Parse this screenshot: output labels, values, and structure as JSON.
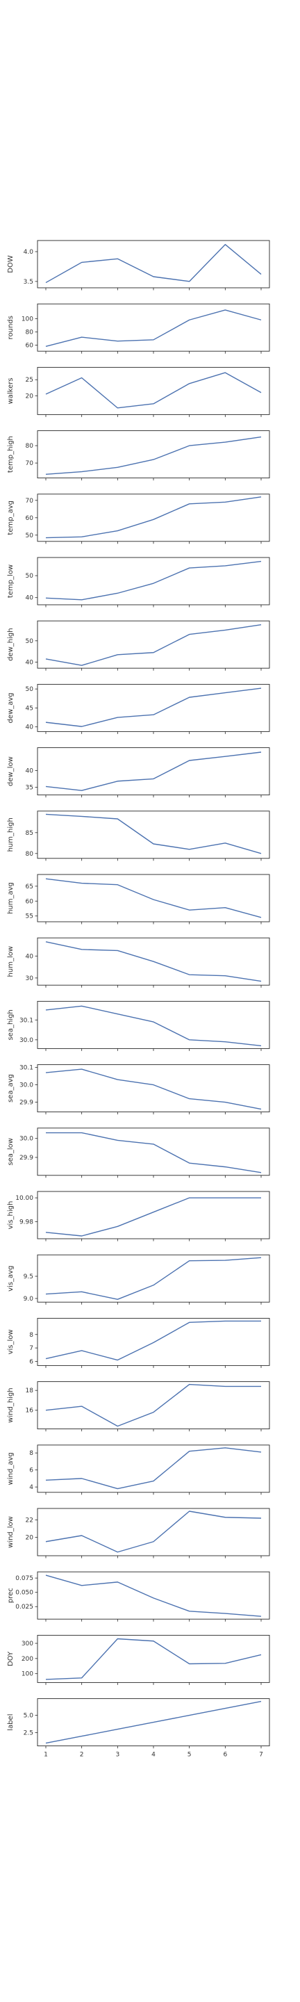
{
  "figure": {
    "background": "#ffffff",
    "line_color": "#4c72b0",
    "axis_color": "#262626"
  },
  "chart_data": {
    "type": "line",
    "layout": "vertically stacked subplots, shared x axis",
    "grid": false,
    "x": [
      1,
      2,
      3,
      4,
      5,
      6,
      7
    ],
    "xticks": [
      "1",
      "2",
      "3",
      "4",
      "5",
      "6",
      "7"
    ],
    "subplots": [
      {
        "ylabel": "DOW",
        "yticks": [
          "3.5",
          "4.0"
        ],
        "ytick_values": [
          3.5,
          4.0
        ],
        "ylim": [
          3.44,
          4.14
        ],
        "values": [
          3.48,
          3.82,
          3.88,
          3.58,
          3.5,
          4.12,
          3.62
        ]
      },
      {
        "ylabel": "rounds",
        "yticks": [
          "60",
          "80",
          "100"
        ],
        "ytick_values": [
          60,
          80,
          100
        ],
        "ylim": [
          55,
          118
        ],
        "values": [
          58,
          72,
          66,
          68,
          98,
          113,
          98
        ]
      },
      {
        "ylabel": "walkers",
        "yticks": [
          "20",
          "25"
        ],
        "ytick_values": [
          20,
          25
        ],
        "ylim": [
          15,
          28
        ],
        "values": [
          20.5,
          25.6,
          16.2,
          17.5,
          23.8,
          27.2,
          21.0
        ]
      },
      {
        "ylabel": "temp_high",
        "yticks": [
          "70",
          "80"
        ],
        "ytick_values": [
          70,
          80
        ],
        "ylim": [
          63,
          87
        ],
        "values": [
          63.5,
          65,
          67.5,
          72,
          80,
          82,
          85
        ]
      },
      {
        "ylabel": "temp_avg",
        "yticks": [
          "50",
          "60",
          "70"
        ],
        "ytick_values": [
          50,
          60,
          70
        ],
        "ylim": [
          48,
          72
        ],
        "values": [
          48.5,
          49,
          52.5,
          59,
          68,
          69,
          72
        ]
      },
      {
        "ylabel": "temp_low",
        "yticks": [
          "40",
          "50"
        ],
        "ytick_values": [
          40,
          50
        ],
        "ylim": [
          38,
          57
        ],
        "values": [
          39.8,
          39,
          42,
          46.5,
          53.5,
          54.5,
          56.5
        ]
      },
      {
        "ylabel": "dew_high",
        "yticks": [
          "40",
          "50"
        ],
        "ytick_values": [
          40,
          50
        ],
        "ylim": [
          38.5,
          58
        ],
        "values": [
          41.5,
          38.5,
          43.5,
          44.5,
          53,
          55,
          57.5
        ]
      },
      {
        "ylabel": "dew_avg",
        "yticks": [
          "40",
          "45",
          "50"
        ],
        "ytick_values": [
          40,
          45,
          50
        ],
        "ylim": [
          39.5,
          50.5
        ],
        "values": [
          41.2,
          40.1,
          42.5,
          43.2,
          47.8,
          49.0,
          50.2
        ]
      },
      {
        "ylabel": "dew_low",
        "yticks": [
          "35",
          "40"
        ],
        "ytick_values": [
          35,
          40
        ],
        "ylim": [
          33.5,
          46
        ],
        "values": [
          35.2,
          34,
          36.8,
          37.5,
          43,
          44.2,
          45.5
        ]
      },
      {
        "ylabel": "hum_high",
        "yticks": [
          "80",
          "85"
        ],
        "ytick_values": [
          80,
          85
        ],
        "ylim": [
          79.5,
          89.5
        ],
        "values": [
          89.4,
          88.9,
          88.3,
          82.3,
          81,
          82.5,
          80
        ]
      },
      {
        "ylabel": "hum_avg",
        "yticks": [
          "55",
          "60",
          "65"
        ],
        "ytick_values": [
          55,
          60,
          65
        ],
        "ylim": [
          54,
          68
        ],
        "values": [
          67.5,
          66,
          65.5,
          60.5,
          57,
          57.8,
          54.5
        ]
      },
      {
        "ylabel": "hum_low",
        "yticks": [
          "30",
          "40"
        ],
        "ytick_values": [
          30,
          40
        ],
        "ylim": [
          28,
          47
        ],
        "values": [
          46.5,
          43,
          42.5,
          37.5,
          31.5,
          31,
          28.5
        ]
      },
      {
        "ylabel": "sea_high",
        "yticks": [
          "30.0",
          "30.1"
        ],
        "ytick_values": [
          30.0,
          30.1
        ],
        "ylim": [
          29.97,
          30.18
        ],
        "values": [
          30.15,
          30.17,
          30.13,
          30.09,
          30.0,
          29.99,
          29.97
        ]
      },
      {
        "ylabel": "sea_avg",
        "yticks": [
          "29.9",
          "30.0",
          "30.1"
        ],
        "ytick_values": [
          29.9,
          30.0,
          30.1
        ],
        "ylim": [
          29.86,
          30.1
        ],
        "values": [
          30.07,
          30.09,
          30.03,
          30.0,
          29.92,
          29.9,
          29.86
        ]
      },
      {
        "ylabel": "sea_low",
        "yticks": [
          "29.9",
          "30.0"
        ],
        "ytick_values": [
          29.9,
          30.0
        ],
        "ylim": [
          29.82,
          30.04
        ],
        "values": [
          30.03,
          30.03,
          29.99,
          29.97,
          29.87,
          29.85,
          29.82
        ]
      },
      {
        "ylabel": "vis_high",
        "yticks": [
          "9.98",
          "10.00"
        ],
        "ytick_values": [
          9.98,
          10.0
        ],
        "ylim": [
          9.968,
          10.003
        ],
        "values": [
          9.971,
          9.968,
          9.976,
          9.988,
          10.0,
          10.0,
          10.0
        ]
      },
      {
        "ylabel": "vis_avg",
        "yticks": [
          "9.0",
          "9.5"
        ],
        "ytick_values": [
          9.0,
          9.5
        ],
        "ylim": [
          8.98,
          9.92
        ],
        "values": [
          9.1,
          9.15,
          8.98,
          9.3,
          9.85,
          9.86,
          9.92
        ]
      },
      {
        "ylabel": "vis_low",
        "yticks": [
          "6",
          "7",
          "8"
        ],
        "ytick_values": [
          6,
          7,
          8
        ],
        "ylim": [
          5.9,
          9.0
        ],
        "values": [
          6.2,
          6.8,
          6.1,
          7.4,
          8.9,
          9.0,
          9.0
        ]
      },
      {
        "ylabel": "wind_high",
        "yticks": [
          "16",
          "18"
        ],
        "ytick_values": [
          16,
          18
        ],
        "ylim": [
          14.4,
          18.6
        ],
        "values": [
          16.0,
          16.4,
          14.4,
          15.8,
          18.6,
          18.4,
          18.4
        ]
      },
      {
        "ylabel": "wind_avg",
        "yticks": [
          "4",
          "6",
          "8"
        ],
        "ytick_values": [
          4,
          6,
          8
        ],
        "ylim": [
          3.7,
          8.6
        ],
        "values": [
          4.8,
          5.0,
          3.8,
          4.7,
          8.2,
          8.6,
          8.1
        ]
      },
      {
        "ylabel": "wind_low",
        "yticks": [
          "20",
          "22"
        ],
        "ytick_values": [
          20,
          22
        ],
        "ylim": [
          18.2,
          23.0
        ],
        "values": [
          19.5,
          20.2,
          18.3,
          19.5,
          23.0,
          22.3,
          22.2
        ]
      },
      {
        "ylabel": "prec",
        "yticks": [
          "0.025",
          "0.050",
          "0.075"
        ],
        "ytick_values": [
          0.025,
          0.05,
          0.075
        ],
        "ylim": [
          0.008,
          0.081
        ],
        "values": [
          0.08,
          0.062,
          0.068,
          0.04,
          0.017,
          0.013,
          0.008
        ]
      },
      {
        "ylabel": "DOY",
        "yticks": [
          "100",
          "200",
          "300"
        ],
        "ytick_values": [
          100,
          200,
          300
        ],
        "ylim": [
          60,
          335
        ],
        "values": [
          62,
          72,
          330,
          315,
          165,
          168,
          225
        ]
      },
      {
        "ylabel": "label",
        "yticks": [
          "2.5",
          "5.0"
        ],
        "ytick_values": [
          2.5,
          5.0
        ],
        "ylim": [
          1,
          7
        ],
        "values": [
          1,
          2,
          3,
          4,
          5,
          6,
          7
        ]
      }
    ]
  }
}
